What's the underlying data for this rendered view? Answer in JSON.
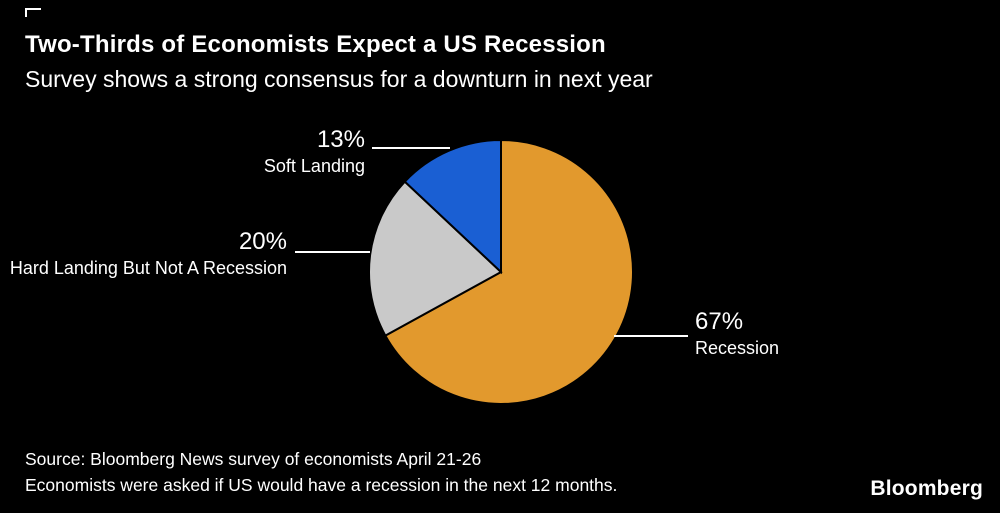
{
  "chart_data": {
    "type": "pie",
    "title": "Two-Thirds of Economists Expect a US Recession",
    "subtitle": "Survey shows a strong consensus for a downturn in next year",
    "unit": "%",
    "start_angle_deg": -90,
    "direction": "clockwise",
    "legend_position": "callout-labels",
    "background": "#000000",
    "slices": [
      {
        "label": "Recession",
        "value": 67,
        "pct_label": "67%",
        "color": "#E2992D"
      },
      {
        "label": "Hard Landing But Not A Recession",
        "value": 20,
        "pct_label": "20%",
        "color": "#C9C9C9"
      },
      {
        "label": "Soft Landing",
        "value": 13,
        "pct_label": "13%",
        "color": "#1A5FD3"
      }
    ]
  },
  "footer": {
    "source_line1": "Source: Bloomberg News survey of economists April 21-26",
    "source_line2": "Economists were asked if US would have a recession in the next 12 months.",
    "brand": "Bloomberg"
  }
}
